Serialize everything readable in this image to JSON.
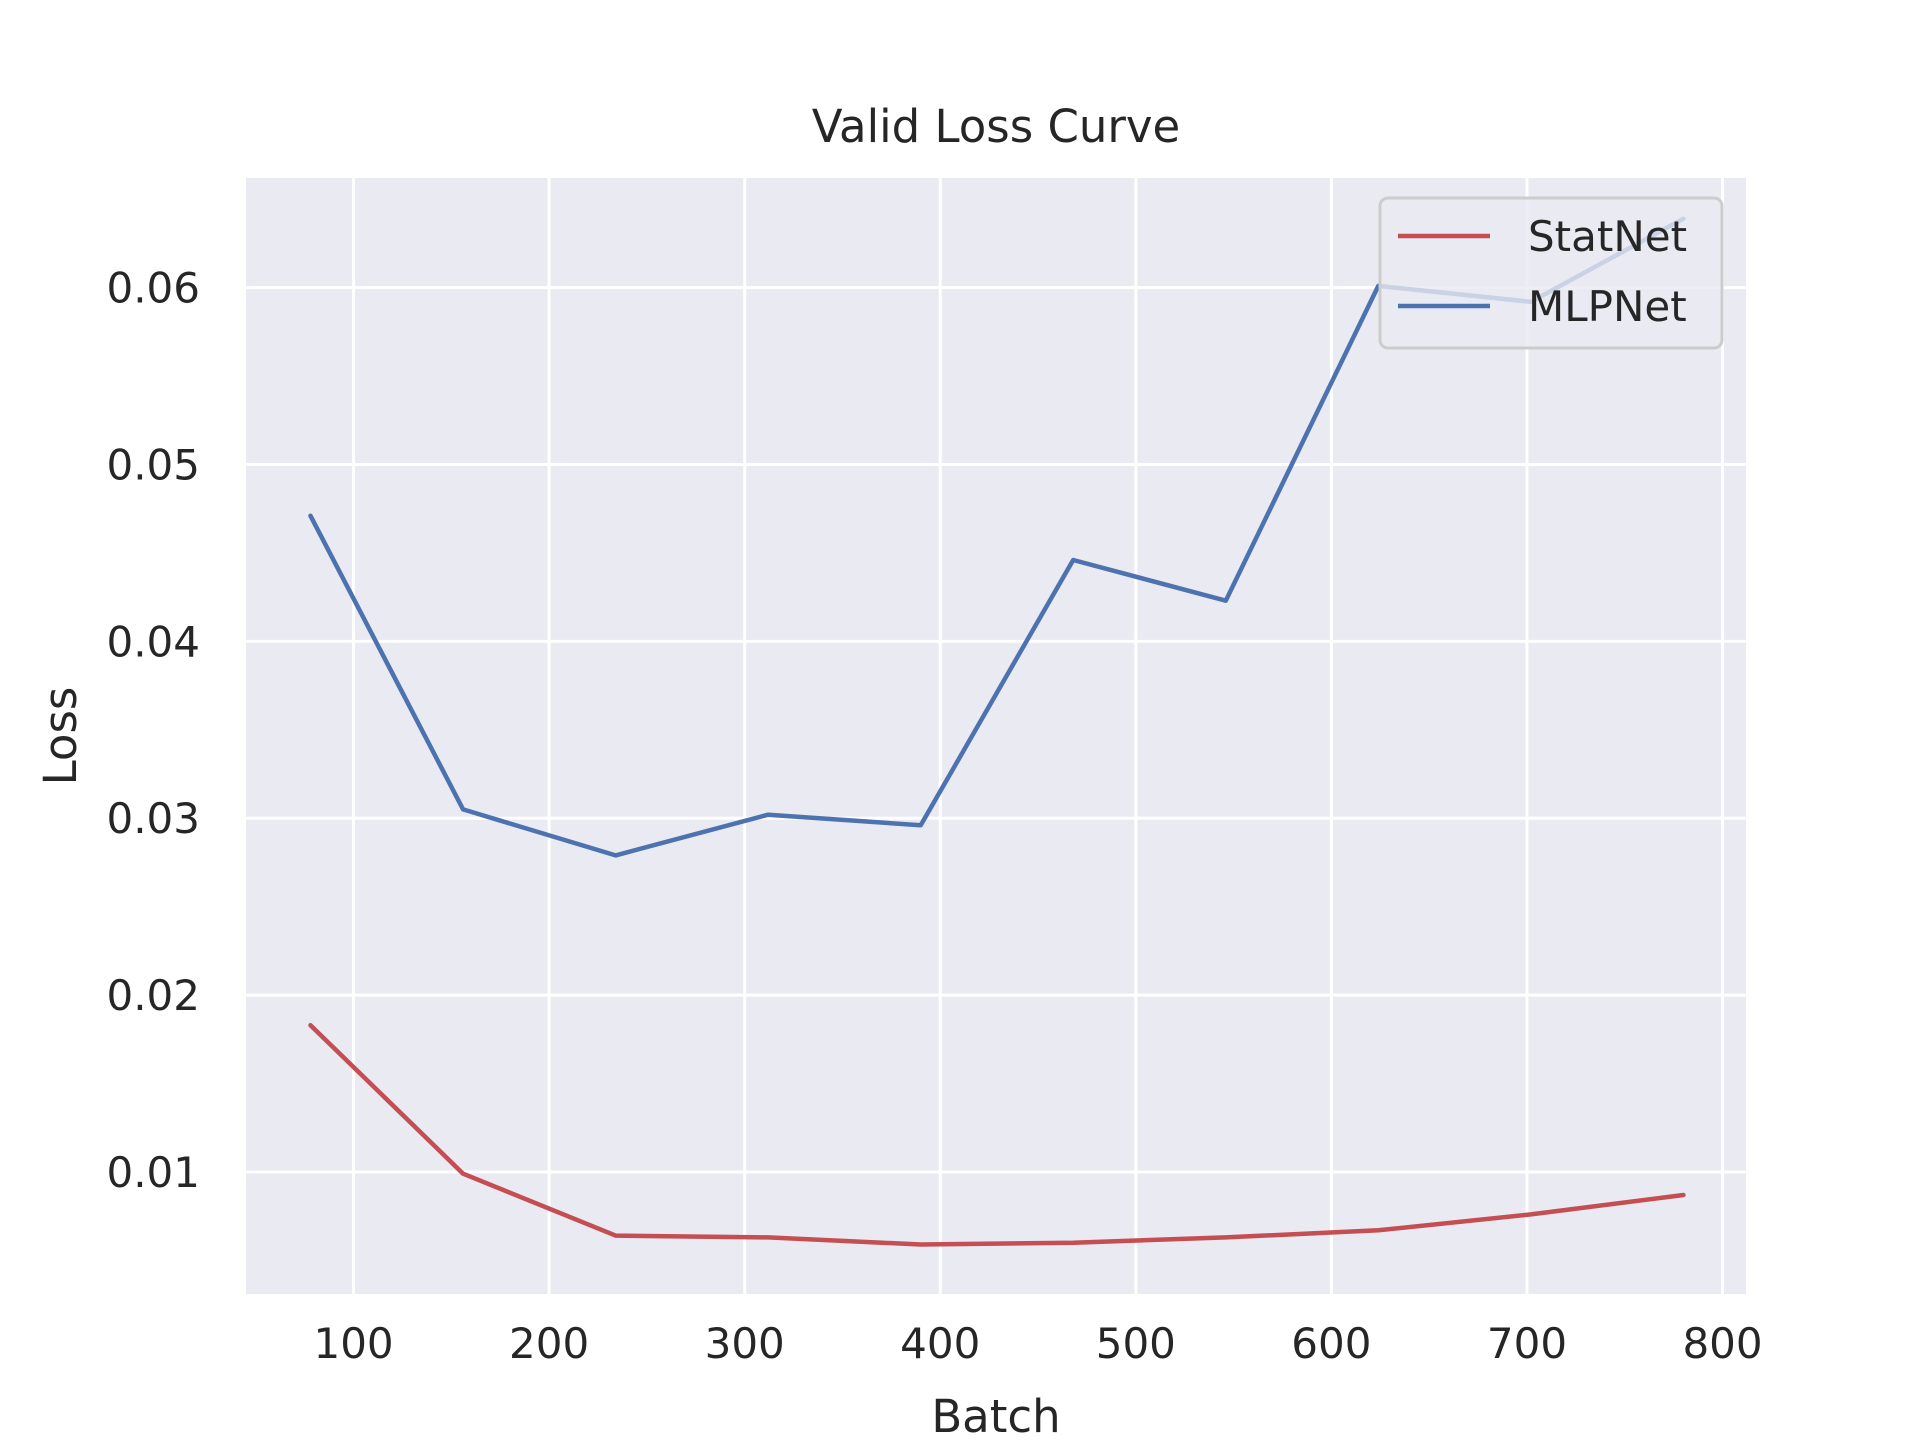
{
  "chart_data": {
    "type": "line",
    "title": "Valid Loss Curve",
    "xlabel": "Batch",
    "ylabel": "Loss",
    "xlim": [
      45,
      812
    ],
    "ylim": [
      0.0031,
      0.0662
    ],
    "xticks": [
      100,
      200,
      300,
      400,
      500,
      600,
      700,
      800
    ],
    "xtick_labels": [
      "100",
      "200",
      "300",
      "400",
      "500",
      "600",
      "700",
      "800"
    ],
    "yticks": [
      0.01,
      0.02,
      0.03,
      0.04,
      0.05,
      0.06
    ],
    "ytick_labels": [
      "0.01",
      "0.02",
      "0.03",
      "0.04",
      "0.05",
      "0.06"
    ],
    "grid": true,
    "legend_position": "top-right",
    "x": [
      78,
      156,
      234,
      312,
      390,
      468,
      546,
      624,
      702,
      780
    ],
    "series": [
      {
        "name": "StatNet",
        "color": "#c44e52",
        "values": [
          0.0183,
          0.0099,
          0.0064,
          0.0063,
          0.0059,
          0.006,
          0.0063,
          0.0067,
          0.0076,
          0.0087
        ]
      },
      {
        "name": "MLPNet",
        "color": "#4c72b0",
        "values": [
          0.0471,
          0.0305,
          0.0279,
          0.0302,
          0.0296,
          0.0446,
          0.0423,
          0.0601,
          0.0592,
          0.0639
        ]
      }
    ]
  }
}
